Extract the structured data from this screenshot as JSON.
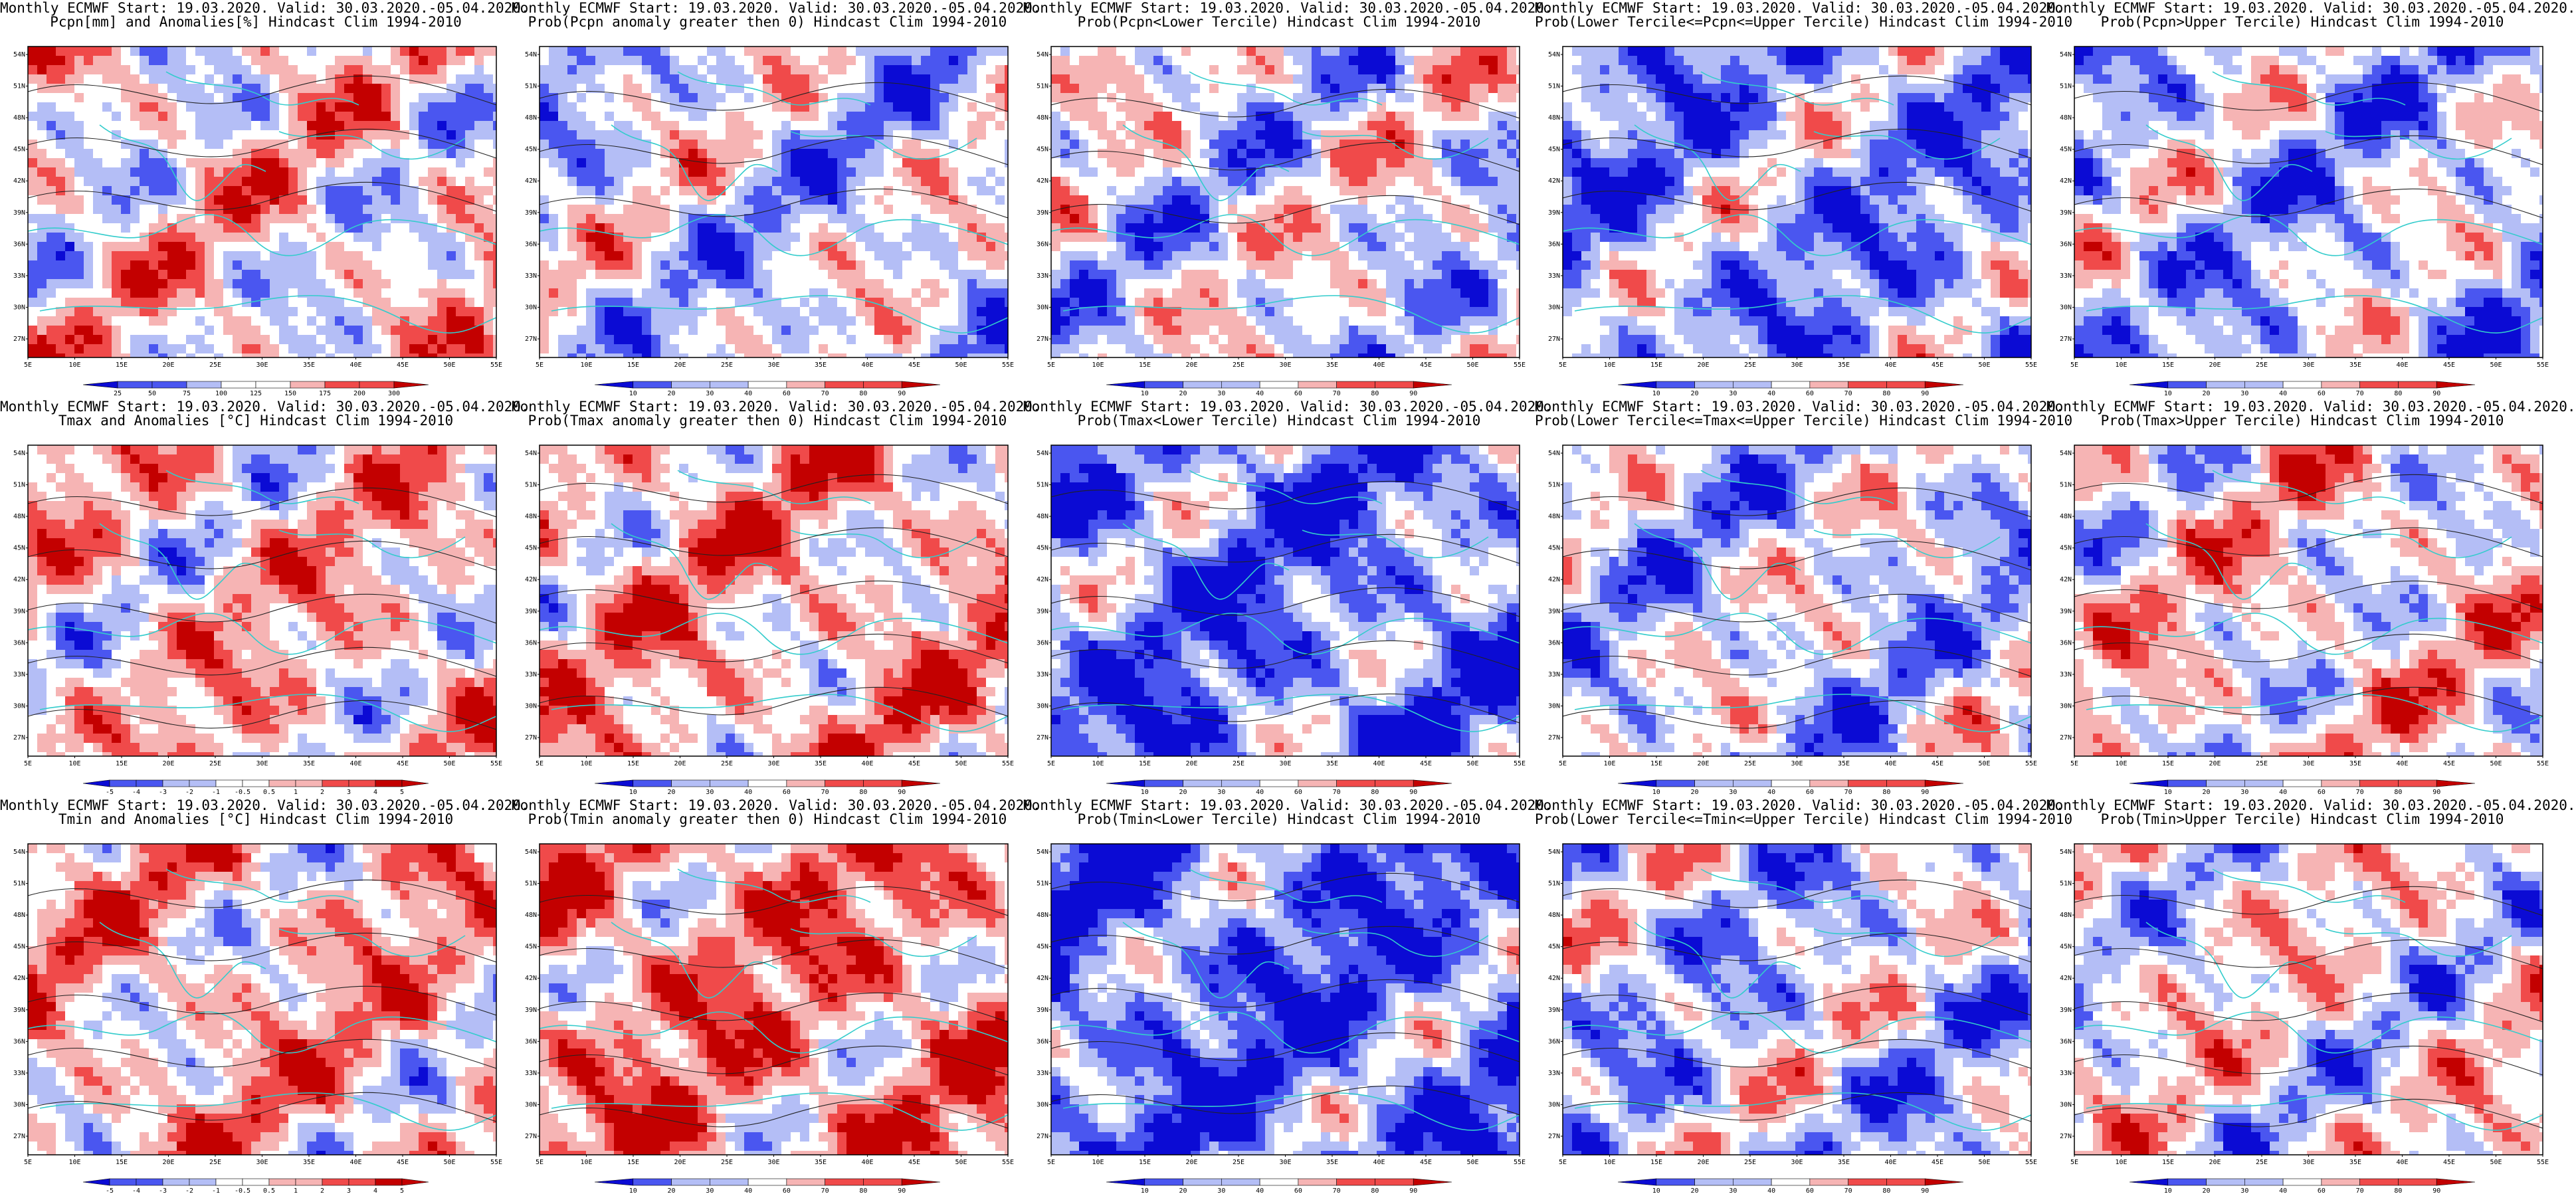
{
  "colors": {
    "deep_blue": "#0b0bd4",
    "mid_blue": "#4a56f0",
    "light_blue": "#b4bef6",
    "white": "#ffffff",
    "light_red": "#f6b4b4",
    "mid_red": "#f04a4a",
    "deep_red": "#c30000",
    "coastline": "#33cccc",
    "contour": "#222222"
  },
  "map_axes": {
    "lat_labels": [
      "54N",
      "51N",
      "48N",
      "45N",
      "42N",
      "39N",
      "36N",
      "33N",
      "30N",
      "27N"
    ],
    "lon_labels": [
      "5E",
      "10E",
      "15E",
      "20E",
      "25E",
      "30E",
      "35E",
      "40E",
      "45E",
      "50E",
      "55E"
    ]
  },
  "colorbars": {
    "precip_anom": [
      "25",
      "50",
      "75",
      "100",
      "125",
      "150",
      "175",
      "200",
      "300"
    ],
    "prob": [
      "10",
      "20",
      "30",
      "40",
      "60",
      "70",
      "80",
      "90"
    ],
    "temp_anom": [
      "-5",
      "-4",
      "-3",
      "-2",
      "-1",
      "-0.5",
      "0.5",
      "1",
      "2",
      "3",
      "4",
      "5"
    ]
  },
  "panels": [
    {
      "line1": "Monthly ECMWF Start: 19.03.2020. Valid: 30.03.2020.-05.04.2020.",
      "line2": "Pcpn[mm] and Anomalies[%] Hindcast Clim 1994-2010",
      "cbar": "precip_anom",
      "bias": 0.1,
      "contours": 3
    },
    {
      "line1": "Monthly ECMWF Start: 19.03.2020. Valid: 30.03.2020.-05.04.2020.",
      "line2": "Prob(Pcpn anomaly greater then 0) Hindcast Clim 1994-2010",
      "cbar": "prob",
      "bias": -0.15,
      "contours": 3
    },
    {
      "line1": "Monthly ECMWF Start: 19.03.2020. Valid: 30.03.2020.-05.04.2020.",
      "line2": "Prob(Pcpn<Lower Tercile) Hindcast Clim 1994-2010",
      "cbar": "prob",
      "bias": -0.1,
      "contours": 3
    },
    {
      "line1": "Monthly ECMWF Start: 19.03.2020. Valid: 30.03.2020.-05.04.2020.",
      "line2": "Prob(Lower Tercile<=Pcpn<=Upper Tercile) Hindcast Clim 1994-2010",
      "cbar": "prob",
      "bias": -0.4,
      "contours": 3
    },
    {
      "line1": "Monthly ECMWF Start: 19.03.2020. Valid: 30.03.2020.-05.04.2020.",
      "line2": "Prob(Pcpn>Upper Tercile) Hindcast Clim 1994-2010",
      "cbar": "prob",
      "bias": -0.25,
      "contours": 3
    },
    {
      "line1": "Monthly ECMWF Start: 19.03.2020. Valid: 30.03.2020.-05.04.2020.",
      "line2": "Tmax and Anomalies [°C] Hindcast Clim 1994-2010",
      "cbar": "temp_anom",
      "bias": 0.2,
      "contours": 5
    },
    {
      "line1": "Monthly ECMWF Start: 19.03.2020. Valid: 30.03.2020.-05.04.2020.",
      "line2": "Prob(Tmax anomaly greater then 0) Hindcast Clim 1994-2010",
      "cbar": "prob",
      "bias": 0.3,
      "contours": 5
    },
    {
      "line1": "Monthly ECMWF Start: 19.03.2020. Valid: 30.03.2020.-05.04.2020.",
      "line2": "Prob(Tmax<Lower Tercile) Hindcast Clim 1994-2010",
      "cbar": "prob",
      "bias": -0.55,
      "contours": 5
    },
    {
      "line1": "Monthly ECMWF Start: 19.03.2020. Valid: 30.03.2020.-05.04.2020.",
      "line2": "Prob(Lower Tercile<=Tmax<=Upper Tercile) Hindcast Clim 1994-2010",
      "cbar": "prob",
      "bias": -0.2,
      "contours": 5
    },
    {
      "line1": "Monthly ECMWF Start: 19.03.2020. Valid: 30.03.2020.-05.04.2020.",
      "line2": "Prob(Tmax>Upper Tercile) Hindcast Clim 1994-2010",
      "cbar": "prob",
      "bias": 0.1,
      "contours": 5
    },
    {
      "line1": "Monthly ECMWF Start: 19.03.2020. Valid: 30.03.2020.-05.04.2020.",
      "line2": "Tmin and Anomalies [°C] Hindcast Clim 1994-2010",
      "cbar": "temp_anom",
      "bias": 0.25,
      "contours": 5
    },
    {
      "line1": "Monthly ECMWF Start: 19.03.2020. Valid: 30.03.2020.-05.04.2020.",
      "line2": "Prob(Tmin anomaly greater then 0) Hindcast Clim 1994-2010",
      "cbar": "prob",
      "bias": 0.45,
      "contours": 5
    },
    {
      "line1": "Monthly ECMWF Start: 19.03.2020. Valid: 30.03.2020.-05.04.2020.",
      "line2": "Prob(Tmin<Lower Tercile) Hindcast Clim 1994-2010",
      "cbar": "prob",
      "bias": -0.6,
      "contours": 5
    },
    {
      "line1": "Monthly ECMWF Start: 19.03.2020. Valid: 30.03.2020.-05.04.2020.",
      "line2": "Prob(Lower Tercile<=Tmin<=Upper Tercile) Hindcast Clim 1994-2010",
      "cbar": "prob",
      "bias": -0.2,
      "contours": 5
    },
    {
      "line1": "Monthly ECMWF Start: 19.03.2020. Valid: 30.03.2020.-05.04.2020.",
      "line2": "Prob(Tmin>Upper Tercile) Hindcast Clim 1994-2010",
      "cbar": "prob",
      "bias": 0.0,
      "contours": 5
    }
  ]
}
